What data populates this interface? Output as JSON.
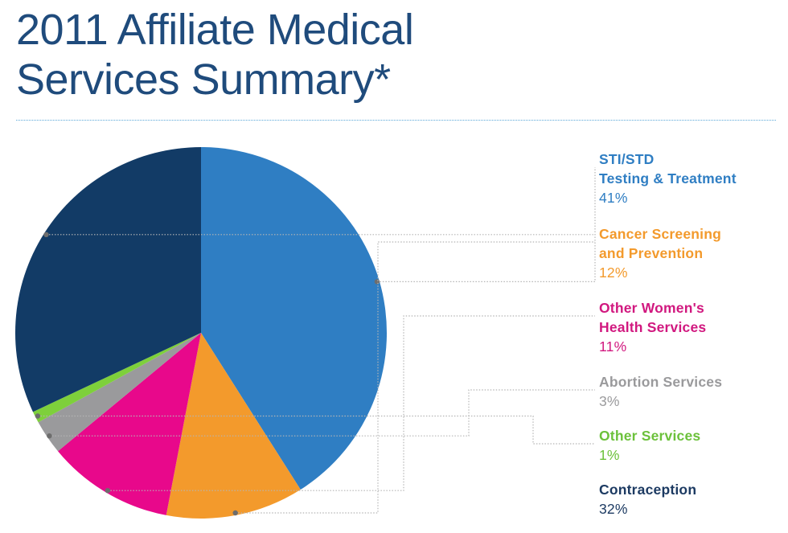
{
  "title": {
    "line1": "2011 Affiliate Medical",
    "line2": "Services Summary*"
  },
  "chart_data": {
    "type": "pie",
    "title": "2011 Affiliate Medical Services Summary*",
    "slices": [
      {
        "label": "STI/STD\nTesting & Treatment",
        "value": 41,
        "display": "41%",
        "color": "#2f7ec3",
        "label_color": "#2f7ec3"
      },
      {
        "label": "Cancer Screening\nand Prevention",
        "value": 12,
        "display": "12%",
        "color": "#f39a2c",
        "label_color": "#f39a2c"
      },
      {
        "label": "Other Women's\nHealth Services",
        "value": 11,
        "display": "11%",
        "color": "#e8088b",
        "label_color": "#d1187f"
      },
      {
        "label": "Abortion Services",
        "value": 3,
        "display": "3%",
        "color": "#9a9a9c",
        "label_color": "#9a9a9c"
      },
      {
        "label": "Other Services",
        "value": 1,
        "display": "1%",
        "color": "#7ed03b",
        "label_color": "#6cc13b"
      },
      {
        "label": "Contraception",
        "value": 32,
        "display": "32%",
        "color": "#123b66",
        "label_color": "#1c3a62"
      }
    ],
    "start_angle_deg": 270,
    "direction": "clockwise",
    "legend_position": "right"
  }
}
